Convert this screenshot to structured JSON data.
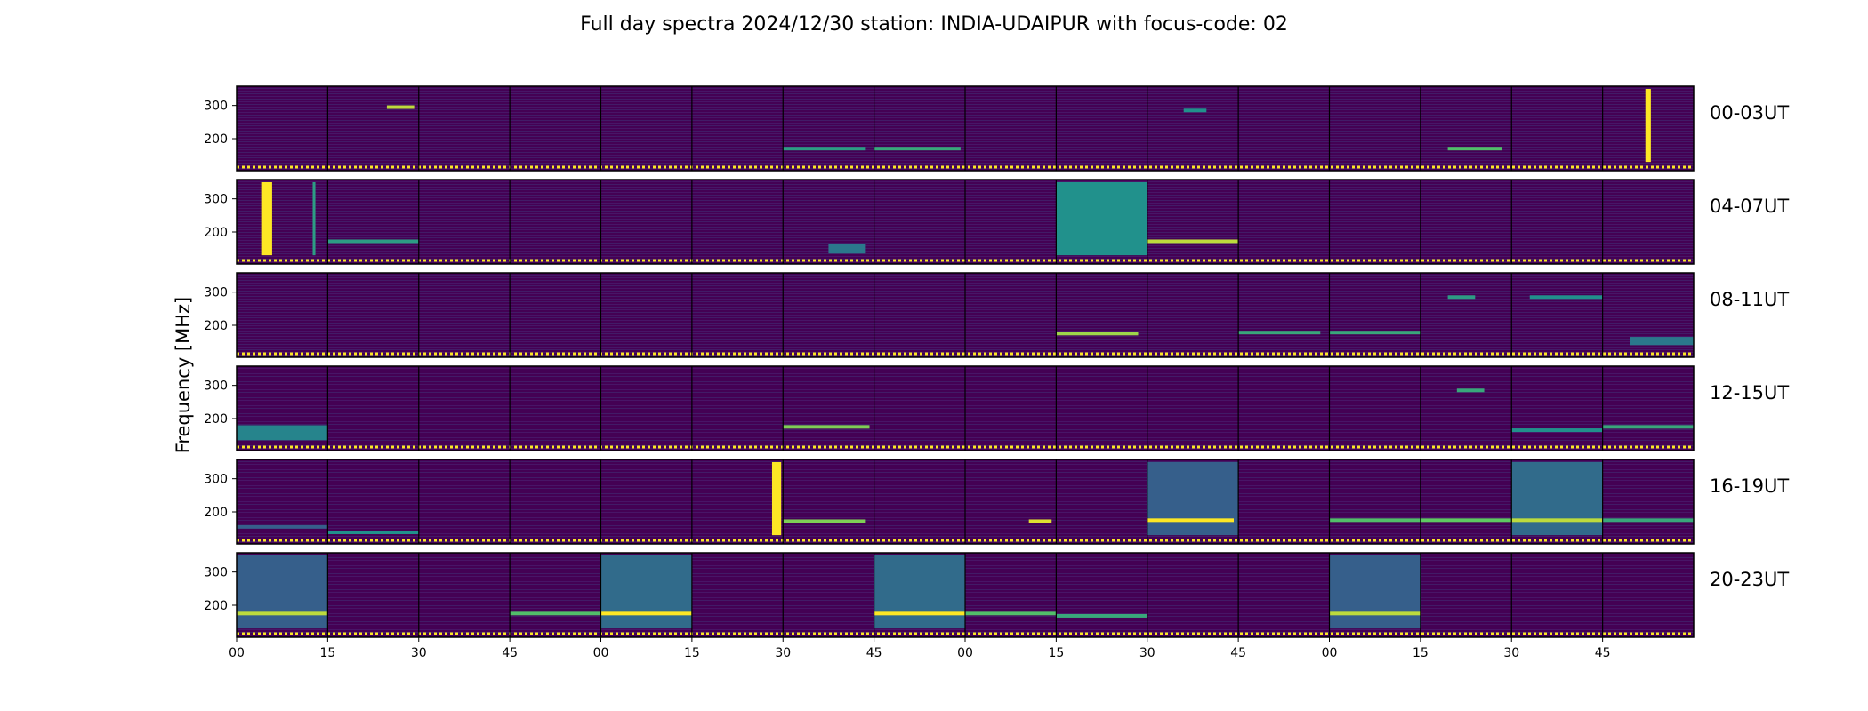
{
  "chart_data": {
    "type": "heatmap",
    "title": "Full day spectra 2024/12/30 station: INDIA-UDAIPUR with focus-code: 02",
    "ylabel": "Frequency [MHz]",
    "xlabel": "",
    "ylim": [
      125,
      350
    ],
    "y_ticks": [
      200,
      300
    ],
    "x_tick_labels": [
      "00",
      "15",
      "30",
      "45",
      "00",
      "15",
      "30",
      "45",
      "00",
      "15",
      "30",
      "45",
      "00",
      "15",
      "30",
      "45"
    ],
    "colormap": "viridis",
    "colors": {
      "low": "#440154",
      "mid": "#21918c",
      "high": "#fde725",
      "axis": "#000000"
    },
    "rows": [
      {
        "label": "00-03UT",
        "features": [
          {
            "panel": 1,
            "type": "hline",
            "x0": 0.65,
            "x1": 0.95,
            "f": 295,
            "level": 0.9
          },
          {
            "panel": 6,
            "type": "hline",
            "x0": 0.0,
            "x1": 0.9,
            "f": 170,
            "level": 0.55
          },
          {
            "panel": 7,
            "type": "hline",
            "x0": 0.0,
            "x1": 0.95,
            "f": 170,
            "level": 0.6
          },
          {
            "panel": 10,
            "type": "hline",
            "x0": 0.4,
            "x1": 0.65,
            "f": 285,
            "level": 0.5
          },
          {
            "panel": 13,
            "type": "hline",
            "x0": 0.3,
            "x1": 0.9,
            "f": 170,
            "level": 0.7
          },
          {
            "panel": 15,
            "type": "vline",
            "x": 0.5,
            "w": 0.06,
            "f0": 130,
            "f1": 350,
            "level": 1.0
          }
        ]
      },
      {
        "label": "04-07UT",
        "features": [
          {
            "panel": 0,
            "type": "vline",
            "x": 0.33,
            "w": 0.12,
            "f0": 130,
            "f1": 350,
            "level": 1.0
          },
          {
            "panel": 0,
            "type": "vline",
            "x": 0.85,
            "w": 0.03,
            "f0": 130,
            "f1": 350,
            "level": 0.55
          },
          {
            "panel": 1,
            "type": "hline",
            "x0": 0.0,
            "x1": 1.0,
            "f": 172,
            "level": 0.55
          },
          {
            "panel": 6,
            "type": "box",
            "x0": 0.5,
            "x1": 0.9,
            "f0": 135,
            "f1": 165,
            "level": 0.4
          },
          {
            "panel": 9,
            "type": "box",
            "x0": 0.0,
            "x1": 1.0,
            "f0": 130,
            "f1": 350,
            "level": 0.5
          },
          {
            "panel": 10,
            "type": "hline",
            "x0": 0.0,
            "x1": 1.0,
            "f": 172,
            "level": 0.9
          }
        ]
      },
      {
        "label": "08-11UT",
        "features": [
          {
            "panel": 9,
            "type": "hline",
            "x0": 0.0,
            "x1": 0.9,
            "f": 175,
            "level": 0.85
          },
          {
            "panel": 11,
            "type": "hline",
            "x0": 0.0,
            "x1": 0.9,
            "f": 178,
            "level": 0.6
          },
          {
            "panel": 12,
            "type": "hline",
            "x0": 0.0,
            "x1": 1.0,
            "f": 178,
            "level": 0.6
          },
          {
            "panel": 13,
            "type": "hline",
            "x0": 0.3,
            "x1": 0.6,
            "f": 285,
            "level": 0.55
          },
          {
            "panel": 14,
            "type": "hline",
            "x0": 0.2,
            "x1": 1.0,
            "f": 285,
            "level": 0.5
          },
          {
            "panel": 15,
            "type": "box",
            "x0": 0.3,
            "x1": 1.0,
            "f0": 140,
            "f1": 165,
            "level": 0.4
          }
        ]
      },
      {
        "label": "12-15UT",
        "features": [
          {
            "panel": 0,
            "type": "box",
            "x0": 0.0,
            "x1": 1.0,
            "f0": 135,
            "f1": 180,
            "level": 0.45
          },
          {
            "panel": 6,
            "type": "hline",
            "x0": 0.0,
            "x1": 0.95,
            "f": 175,
            "level": 0.8
          },
          {
            "panel": 13,
            "type": "hline",
            "x0": 0.4,
            "x1": 0.7,
            "f": 285,
            "level": 0.6
          },
          {
            "panel": 14,
            "type": "hline",
            "x0": 0.0,
            "x1": 1.0,
            "f": 165,
            "level": 0.5
          },
          {
            "panel": 15,
            "type": "hline",
            "x0": 0.0,
            "x1": 1.0,
            "f": 175,
            "level": 0.6
          }
        ]
      },
      {
        "label": "16-19UT",
        "features": [
          {
            "panel": 0,
            "type": "hline",
            "x0": 0.0,
            "x1": 1.0,
            "f": 155,
            "level": 0.3
          },
          {
            "panel": 1,
            "type": "box",
            "x0": 0.0,
            "x1": 1.0,
            "f0": 133,
            "f1": 142,
            "level": 0.5
          },
          {
            "panel": 5,
            "type": "vline",
            "x": 0.93,
            "w": 0.1,
            "f0": 130,
            "f1": 350,
            "level": 1.0
          },
          {
            "panel": 6,
            "type": "hline",
            "x0": 0.0,
            "x1": 0.9,
            "f": 172,
            "level": 0.8
          },
          {
            "panel": 8,
            "type": "hline",
            "x0": 0.7,
            "x1": 0.95,
            "f": 172,
            "level": 0.95
          },
          {
            "panel": 10,
            "type": "box",
            "x0": 0.0,
            "x1": 1.0,
            "f0": 130,
            "f1": 350,
            "level": 0.3
          },
          {
            "panel": 10,
            "type": "hline",
            "x0": 0.0,
            "x1": 0.95,
            "f": 175,
            "level": 1.0
          },
          {
            "panel": 12,
            "type": "hline",
            "x0": 0.0,
            "x1": 1.0,
            "f": 175,
            "level": 0.7
          },
          {
            "panel": 13,
            "type": "hline",
            "x0": 0.0,
            "x1": 1.0,
            "f": 175,
            "level": 0.75
          },
          {
            "panel": 14,
            "type": "box",
            "x0": 0.0,
            "x1": 1.0,
            "f0": 130,
            "f1": 350,
            "level": 0.35
          },
          {
            "panel": 14,
            "type": "hline",
            "x0": 0.0,
            "x1": 1.0,
            "f": 175,
            "level": 0.9
          },
          {
            "panel": 15,
            "type": "hline",
            "x0": 0.0,
            "x1": 1.0,
            "f": 175,
            "level": 0.6
          }
        ]
      },
      {
        "label": "20-23UT",
        "features": [
          {
            "panel": 0,
            "type": "box",
            "x0": 0.0,
            "x1": 1.0,
            "f0": 130,
            "f1": 350,
            "level": 0.3
          },
          {
            "panel": 0,
            "type": "hline",
            "x0": 0.0,
            "x1": 1.0,
            "f": 175,
            "level": 0.9
          },
          {
            "panel": 3,
            "type": "hline",
            "x0": 0.0,
            "x1": 1.0,
            "f": 175,
            "level": 0.7
          },
          {
            "panel": 4,
            "type": "box",
            "x0": 0.0,
            "x1": 1.0,
            "f0": 130,
            "f1": 350,
            "level": 0.35
          },
          {
            "panel": 4,
            "type": "hline",
            "x0": 0.0,
            "x1": 1.0,
            "f": 175,
            "level": 1.0
          },
          {
            "panel": 7,
            "type": "box",
            "x0": 0.0,
            "x1": 1.0,
            "f0": 130,
            "f1": 350,
            "level": 0.35
          },
          {
            "panel": 7,
            "type": "hline",
            "x0": 0.0,
            "x1": 1.0,
            "f": 175,
            "level": 1.0
          },
          {
            "panel": 8,
            "type": "hline",
            "x0": 0.0,
            "x1": 1.0,
            "f": 175,
            "level": 0.7
          },
          {
            "panel": 9,
            "type": "hline",
            "x0": 0.0,
            "x1": 1.0,
            "f": 168,
            "level": 0.6
          },
          {
            "panel": 12,
            "type": "box",
            "x0": 0.0,
            "x1": 1.0,
            "f0": 130,
            "f1": 350,
            "level": 0.3
          },
          {
            "panel": 12,
            "type": "hline",
            "x0": 0.0,
            "x1": 1.0,
            "f": 175,
            "level": 0.9
          }
        ]
      }
    ]
  }
}
